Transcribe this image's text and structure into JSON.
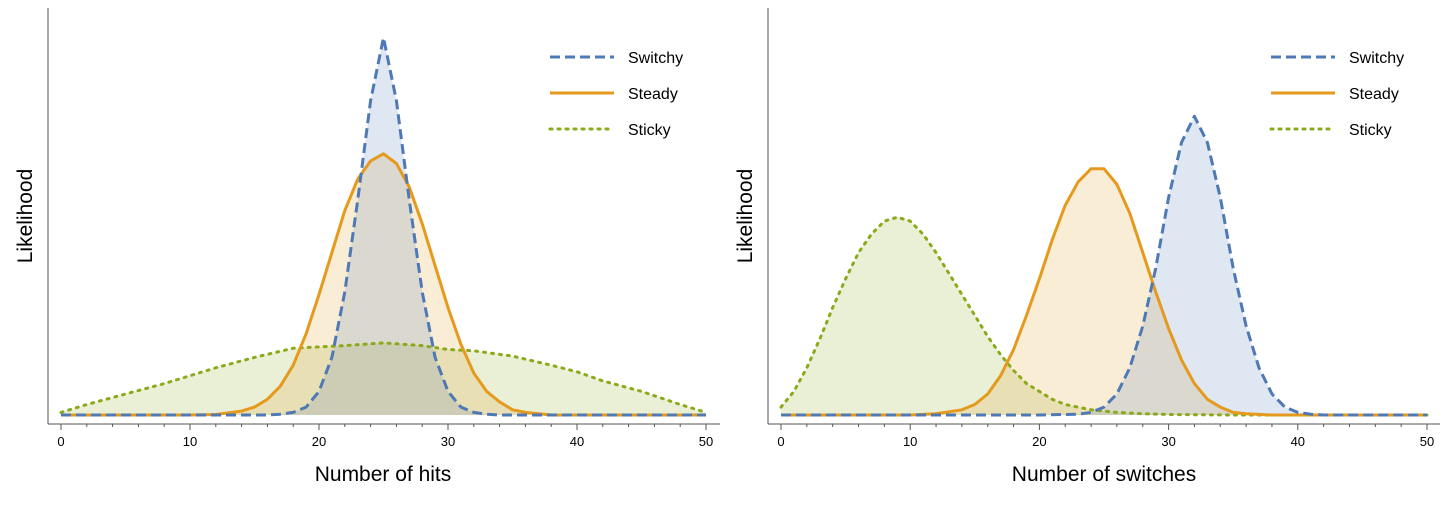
{
  "chart_data": [
    {
      "type": "area",
      "title": "",
      "xlabel": "Number of hits",
      "ylabel": "Likelihood",
      "xlim": [
        0,
        50
      ],
      "ylim": [
        0,
        0.15
      ],
      "x_ticks": [
        0,
        10,
        20,
        30,
        40,
        50
      ],
      "x_tick_labels": [
        "0",
        "10",
        "20",
        "30",
        "40",
        "50"
      ],
      "y_ticks": [],
      "grid": false,
      "legend_position": "top-right",
      "series": [
        {
          "name": "Switchy",
          "color": "#4E79B5",
          "line_style": "dashed",
          "x": [
            0,
            5,
            10,
            14,
            16,
            17,
            18,
            19,
            20,
            21,
            22,
            23,
            24,
            25,
            26,
            27,
            28,
            29,
            30,
            31,
            32,
            33,
            34,
            36,
            40,
            45,
            50
          ],
          "values": [
            0,
            0,
            0,
            0,
            0,
            0.0003,
            0.001,
            0.003,
            0.009,
            0.022,
            0.047,
            0.082,
            0.12,
            0.144,
            0.12,
            0.082,
            0.047,
            0.022,
            0.009,
            0.003,
            0.001,
            0.0003,
            0,
            0,
            0,
            0,
            0
          ]
        },
        {
          "name": "Steady",
          "color": "#E59A1E",
          "line_style": "solid",
          "x": [
            0,
            5,
            10,
            12,
            14,
            15,
            16,
            17,
            18,
            19,
            20,
            21,
            22,
            23,
            24,
            25,
            26,
            27,
            28,
            29,
            30,
            31,
            32,
            33,
            34,
            35,
            36,
            38,
            40,
            45,
            50
          ],
          "values": [
            0,
            0,
            0,
            0.0002,
            0.0015,
            0.003,
            0.006,
            0.011,
            0.019,
            0.031,
            0.046,
            0.062,
            0.078,
            0.09,
            0.097,
            0.0997,
            0.096,
            0.087,
            0.073,
            0.057,
            0.041,
            0.027,
            0.016,
            0.009,
            0.005,
            0.002,
            0.001,
            0,
            0,
            0,
            0
          ]
        },
        {
          "name": "Sticky",
          "color": "#8AAA1A",
          "line_style": "dotted",
          "x": [
            0,
            2,
            5,
            8,
            10,
            12,
            15,
            18,
            20,
            22,
            25,
            28,
            30,
            32,
            35,
            38,
            40,
            42,
            45,
            48,
            50
          ],
          "values": [
            0.001,
            0.004,
            0.008,
            0.012,
            0.015,
            0.018,
            0.022,
            0.0255,
            0.026,
            0.0265,
            0.0275,
            0.0265,
            0.025,
            0.0245,
            0.0225,
            0.019,
            0.0165,
            0.013,
            0.009,
            0.004,
            0.001
          ]
        }
      ]
    },
    {
      "type": "area",
      "title": "",
      "xlabel": "Number of switches",
      "ylabel": "Likelihood",
      "xlim": [
        0,
        50
      ],
      "ylim": [
        0,
        0.15
      ],
      "x_ticks": [
        0,
        10,
        20,
        30,
        40,
        50
      ],
      "x_tick_labels": [
        "0",
        "10",
        "20",
        "30",
        "40",
        "50"
      ],
      "y_ticks": [],
      "grid": false,
      "legend_position": "top-right",
      "series": [
        {
          "name": "Switchy",
          "color": "#4E79B5",
          "line_style": "dashed",
          "x": [
            0,
            10,
            15,
            20,
            23,
            24,
            25,
            26,
            27,
            28,
            29,
            30,
            31,
            32,
            33,
            34,
            35,
            36,
            37,
            38,
            39,
            40,
            41,
            42,
            43,
            45,
            50
          ],
          "values": [
            0,
            0,
            0,
            0,
            0.0003,
            0.001,
            0.003,
            0.008,
            0.018,
            0.034,
            0.056,
            0.083,
            0.104,
            0.114,
            0.104,
            0.083,
            0.056,
            0.034,
            0.018,
            0.008,
            0.003,
            0.001,
            0.0003,
            0,
            0,
            0,
            0
          ]
        },
        {
          "name": "Steady",
          "color": "#E59A1E",
          "line_style": "solid",
          "x": [
            0,
            10,
            12,
            14,
            15,
            16,
            17,
            18,
            19,
            20,
            21,
            22,
            23,
            24,
            25,
            26,
            27,
            28,
            29,
            30,
            31,
            32,
            33,
            34,
            35,
            36,
            38,
            40,
            50
          ],
          "values": [
            0,
            0,
            0.0005,
            0.002,
            0.004,
            0.008,
            0.015,
            0.025,
            0.038,
            0.052,
            0.067,
            0.08,
            0.089,
            0.094,
            0.094,
            0.088,
            0.077,
            0.062,
            0.047,
            0.033,
            0.021,
            0.012,
            0.006,
            0.003,
            0.001,
            0.0005,
            0,
            0,
            0
          ]
        },
        {
          "name": "Sticky",
          "color": "#8AAA1A",
          "line_style": "dotted",
          "x": [
            0,
            1,
            2,
            3,
            4,
            5,
            6,
            7,
            8,
            9,
            10,
            11,
            12,
            13,
            14,
            15,
            16,
            17,
            18,
            19,
            20,
            21,
            22,
            24,
            26,
            28,
            30,
            35,
            40,
            50
          ],
          "values": [
            0.003,
            0.009,
            0.018,
            0.029,
            0.041,
            0.052,
            0.062,
            0.069,
            0.074,
            0.0755,
            0.074,
            0.069,
            0.062,
            0.054,
            0.046,
            0.038,
            0.03,
            0.023,
            0.017,
            0.012,
            0.009,
            0.006,
            0.004,
            0.002,
            0.001,
            0.0005,
            0.0002,
            0,
            0,
            0
          ]
        }
      ]
    }
  ]
}
